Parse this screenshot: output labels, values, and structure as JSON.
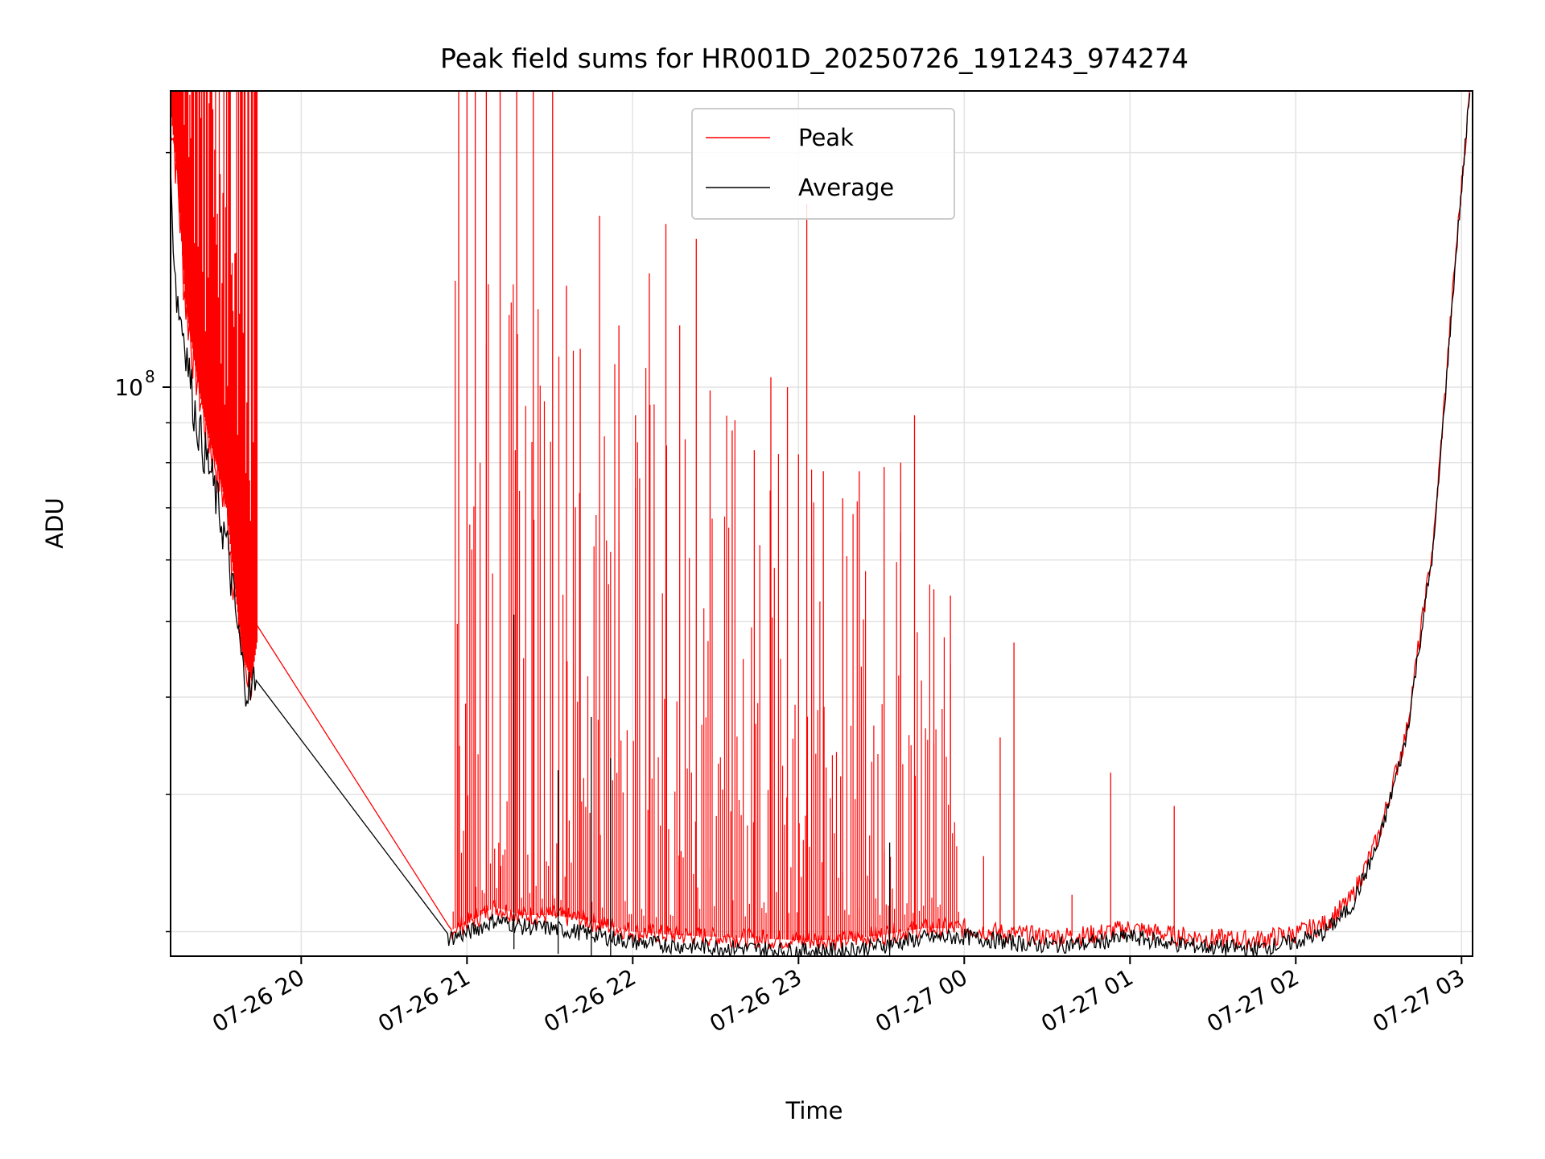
{
  "chart_data": {
    "type": "line",
    "title": "Peak field sums for HR001D_20250726_191243_974274",
    "xlabel": "Time",
    "ylabel": "ADU",
    "yscale": "log",
    "xlim": [
      "2025-07-26T19:12:43",
      "2025-07-27T03:04:00"
    ],
    "ylim": [
      18600000,
      240000000
    ],
    "grid": true,
    "legend_position": "top-center",
    "x_ticks": [
      {
        "value": "2025-07-26T20:00",
        "label": "07-26 20"
      },
      {
        "value": "2025-07-26T21:00",
        "label": "07-26 21"
      },
      {
        "value": "2025-07-26T22:00",
        "label": "07-26 22"
      },
      {
        "value": "2025-07-26T23:00",
        "label": "07-26 23"
      },
      {
        "value": "2025-07-27T00:00",
        "label": "07-27 00"
      },
      {
        "value": "2025-07-27T01:00",
        "label": "07-27 01"
      },
      {
        "value": "2025-07-27T02:00",
        "label": "07-27 02"
      },
      {
        "value": "2025-07-27T03:00",
        "label": "07-27 03"
      }
    ],
    "y_major_ticks": [
      {
        "value": 100000000,
        "label": "10",
        "exponent": "8"
      }
    ],
    "y_minor_ticks": [
      20000000,
      30000000,
      40000000,
      50000000,
      60000000,
      70000000,
      80000000,
      90000000,
      200000000
    ],
    "series": [
      {
        "name": "Peak",
        "color": "#ff0000",
        "points": [
          [
            "2025-07-26T19:12",
            240000000
          ],
          [
            "2025-07-26T19:15",
            190000000
          ],
          [
            "2025-07-26T19:18",
            130000000
          ],
          [
            "2025-07-26T19:21",
            110000000
          ],
          [
            "2025-07-26T19:24",
            95000000
          ],
          [
            "2025-07-26T19:27",
            85000000
          ],
          [
            "2025-07-26T19:30",
            78000000
          ],
          [
            "2025-07-26T19:33",
            70000000
          ],
          [
            "2025-07-26T19:36",
            55000000
          ],
          [
            "2025-07-26T19:39",
            45000000
          ],
          [
            "2025-07-26T19:42",
            42000000
          ],
          [
            "2025-07-26T19:44",
            47000000
          ],
          [
            "2025-07-26T20:53",
            20000000
          ],
          [
            "2025-07-26T21:00",
            20500000
          ],
          [
            "2025-07-26T21:10",
            21500000
          ],
          [
            "2025-07-26T21:20",
            21000000
          ],
          [
            "2025-07-26T21:30",
            21000000
          ],
          [
            "2025-07-26T21:40",
            20800000
          ],
          [
            "2025-07-26T21:50",
            20400000
          ],
          [
            "2025-07-26T22:00",
            20000000
          ],
          [
            "2025-07-26T22:15",
            19800000
          ],
          [
            "2025-07-26T22:30",
            19700000
          ],
          [
            "2025-07-26T22:45",
            19600000
          ],
          [
            "2025-07-26T23:00",
            19500000
          ],
          [
            "2025-07-26T23:15",
            19500000
          ],
          [
            "2025-07-26T23:30",
            19800000
          ],
          [
            "2025-07-26T23:45",
            20200000
          ],
          [
            "2025-07-27T00:00",
            20200000
          ],
          [
            "2025-07-27T00:15",
            19900000
          ],
          [
            "2025-07-27T00:30",
            19700000
          ],
          [
            "2025-07-27T00:45",
            19800000
          ],
          [
            "2025-07-27T01:00",
            20200000
          ],
          [
            "2025-07-27T01:15",
            19800000
          ],
          [
            "2025-07-27T01:30",
            19600000
          ],
          [
            "2025-07-27T01:45",
            19500000
          ],
          [
            "2025-07-27T02:00",
            19900000
          ],
          [
            "2025-07-27T02:10",
            20400000
          ],
          [
            "2025-07-27T02:20",
            22000000
          ],
          [
            "2025-07-27T02:30",
            26500000
          ],
          [
            "2025-07-27T02:40",
            36000000
          ],
          [
            "2025-07-27T02:50",
            64000000
          ],
          [
            "2025-07-27T02:58",
            150000000
          ],
          [
            "2025-07-27T03:03",
            240000000
          ]
        ]
      },
      {
        "name": "Average",
        "color": "#000000",
        "points": [
          [
            "2025-07-26T19:12",
            200000000
          ],
          [
            "2025-07-26T19:15",
            130000000
          ],
          [
            "2025-07-26T19:18",
            115000000
          ],
          [
            "2025-07-26T19:21",
            95000000
          ],
          [
            "2025-07-26T19:24",
            85000000
          ],
          [
            "2025-07-26T19:27",
            78000000
          ],
          [
            "2025-07-26T19:30",
            70000000
          ],
          [
            "2025-07-26T19:33",
            63000000
          ],
          [
            "2025-07-26T19:36",
            52000000
          ],
          [
            "2025-07-26T19:39",
            43000000
          ],
          [
            "2025-07-26T19:42",
            40000000
          ],
          [
            "2025-07-26T19:44",
            45000000
          ],
          [
            "2025-07-26T20:53",
            19600000
          ],
          [
            "2025-07-26T21:00",
            19900000
          ],
          [
            "2025-07-26T21:10",
            20700000
          ],
          [
            "2025-07-26T21:20",
            20300000
          ],
          [
            "2025-07-26T21:30",
            20200000
          ],
          [
            "2025-07-26T21:40",
            20000000
          ],
          [
            "2025-07-26T21:50",
            19700000
          ],
          [
            "2025-07-26T22:00",
            19400000
          ],
          [
            "2025-07-26T22:15",
            19200000
          ],
          [
            "2025-07-26T22:30",
            19100000
          ],
          [
            "2025-07-26T22:45",
            19000000
          ],
          [
            "2025-07-26T23:00",
            18900000
          ],
          [
            "2025-07-26T23:15",
            18900000
          ],
          [
            "2025-07-26T23:30",
            19200000
          ],
          [
            "2025-07-26T23:45",
            19600000
          ],
          [
            "2025-07-27T00:00",
            19700000
          ],
          [
            "2025-07-27T00:15",
            19400000
          ],
          [
            "2025-07-27T00:30",
            19200000
          ],
          [
            "2025-07-27T00:45",
            19300000
          ],
          [
            "2025-07-27T01:00",
            19700000
          ],
          [
            "2025-07-27T01:15",
            19300000
          ],
          [
            "2025-07-27T01:30",
            19100000
          ],
          [
            "2025-07-27T01:45",
            19000000
          ],
          [
            "2025-07-27T02:00",
            19400000
          ],
          [
            "2025-07-27T02:10",
            19900000
          ],
          [
            "2025-07-27T02:20",
            21500000
          ],
          [
            "2025-07-27T02:30",
            26000000
          ],
          [
            "2025-07-27T02:40",
            35500000
          ],
          [
            "2025-07-27T02:50",
            63000000
          ],
          [
            "2025-07-27T02:58",
            148000000
          ],
          [
            "2025-07-27T03:03",
            240000000
          ]
        ]
      }
    ],
    "peak_spikes": [
      [
        "2025-07-26T20:57",
        240000000
      ],
      [
        "2025-07-26T21:00",
        240000000
      ],
      [
        "2025-07-26T21:03",
        240000000
      ],
      [
        "2025-07-26T21:07",
        240000000
      ],
      [
        "2025-07-26T21:12",
        240000000
      ],
      [
        "2025-07-26T21:18",
        240000000
      ],
      [
        "2025-07-26T21:24",
        240000000
      ],
      [
        "2025-07-26T21:31",
        240000000
      ],
      [
        "2025-07-26T21:36",
        135000000
      ],
      [
        "2025-07-26T21:41",
        112000000
      ],
      [
        "2025-07-26T21:48",
        166000000
      ],
      [
        "2025-07-26T21:55",
        120000000
      ],
      [
        "2025-07-26T22:01",
        92000000
      ],
      [
        "2025-07-26T22:06",
        140000000
      ],
      [
        "2025-07-26T22:12",
        162000000
      ],
      [
        "2025-07-26T22:17",
        120000000
      ],
      [
        "2025-07-26T22:23",
        155000000
      ],
      [
        "2025-07-26T22:28",
        99000000
      ],
      [
        "2025-07-26T22:36",
        88000000
      ],
      [
        "2025-07-26T22:44",
        83000000
      ],
      [
        "2025-07-26T22:50",
        103000000
      ],
      [
        "2025-07-26T22:56",
        100000000
      ],
      [
        "2025-07-26T23:00",
        82000000
      ],
      [
        "2025-07-26T23:03",
        172000000
      ],
      [
        "2025-07-26T23:09",
        78000000
      ],
      [
        "2025-07-26T23:16",
        72000000
      ],
      [
        "2025-07-26T23:22",
        78000000
      ],
      [
        "2025-07-26T23:31",
        79000000
      ],
      [
        "2025-07-26T23:37",
        80000000
      ],
      [
        "2025-07-26T23:42",
        92000000
      ],
      [
        "2025-07-26T23:49",
        55000000
      ],
      [
        "2025-07-26T23:55",
        54000000
      ],
      [
        "2025-07-27T00:07",
        25000000
      ],
      [
        "2025-07-27T00:13",
        35500000
      ],
      [
        "2025-07-27T00:18",
        47000000
      ],
      [
        "2025-07-27T00:39",
        22300000
      ],
      [
        "2025-07-27T00:53",
        32000000
      ],
      [
        "2025-07-27T01:16",
        29000000
      ]
    ]
  }
}
